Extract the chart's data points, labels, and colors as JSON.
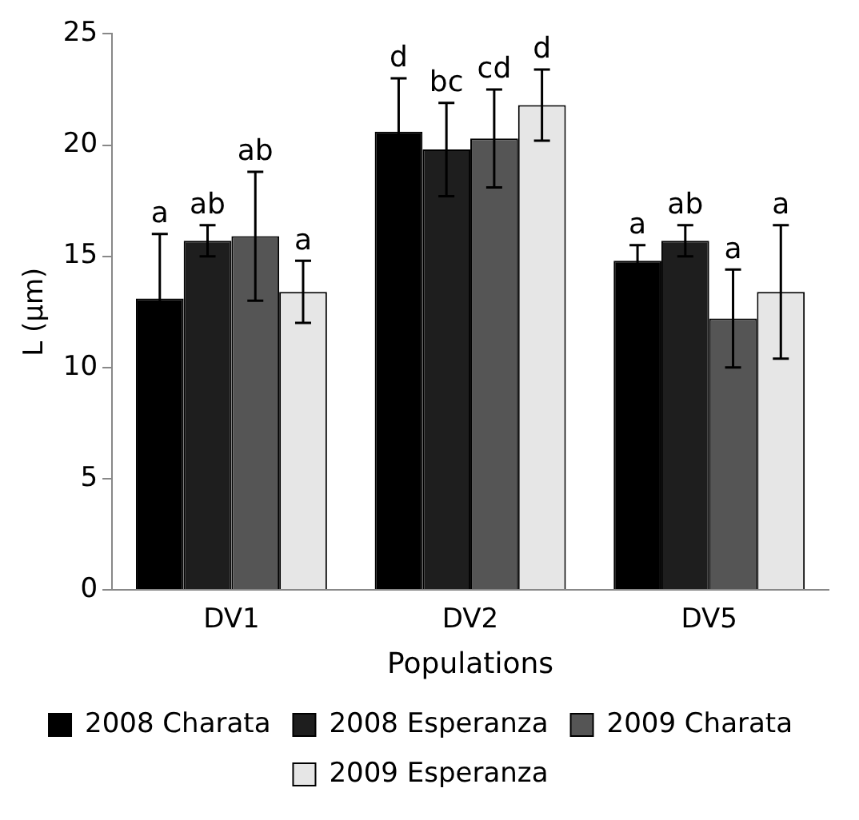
{
  "chart_data": {
    "type": "bar",
    "xlabel": "Populations",
    "ylabel": "L (µm)",
    "categories": [
      "DV1",
      "DV2",
      "DV5"
    ],
    "series": [
      {
        "name": "2008 Charata",
        "color": "#000000",
        "values": [
          13.1,
          20.6,
          14.8
        ],
        "errors": [
          2.9,
          2.4,
          0.7
        ],
        "value_labels": [
          "a",
          "d",
          "a"
        ]
      },
      {
        "name": "2008 Esperanza",
        "color": "#1e1e1e",
        "values": [
          15.7,
          19.8,
          15.7
        ],
        "errors": [
          0.7,
          2.1,
          0.7
        ],
        "value_labels": [
          "ab",
          "bc",
          "ab"
        ]
      },
      {
        "name": "2009 Charata",
        "color": "#555555",
        "values": [
          15.9,
          20.3,
          12.2
        ],
        "errors": [
          2.9,
          2.2,
          2.2
        ],
        "value_labels": [
          "ab",
          "cd",
          "a"
        ]
      },
      {
        "name": "2009 Esperanza",
        "color": "#e6e6e6",
        "values": [
          13.4,
          21.8,
          13.4
        ],
        "errors": [
          1.4,
          1.6,
          3.0
        ],
        "value_labels": [
          "a",
          "d",
          "a"
        ]
      }
    ],
    "ylim": [
      0,
      25
    ],
    "yticks": [
      0,
      5,
      10,
      15,
      20,
      25
    ],
    "grid": false,
    "legend": "bottom"
  }
}
